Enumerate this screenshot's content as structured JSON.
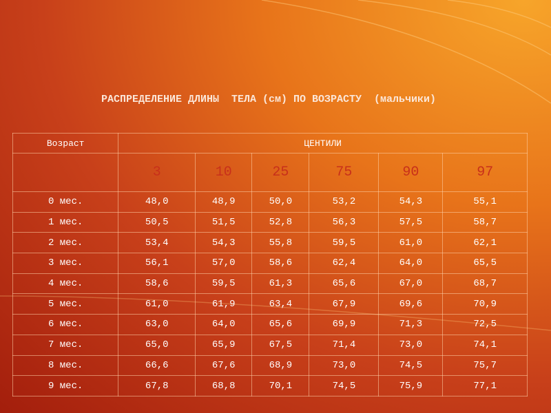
{
  "title": "РАСПРЕДЕЛЕНИЕ ДЛИНЫ  ТЕЛА (см) ПО ВОЗРАСТУ  (мальчики)",
  "table": {
    "header": [
      "Возраст",
      "ЦЕНТИЛИ"
    ],
    "centiles": [
      "3",
      "10",
      "25",
      "75",
      "90",
      "97"
    ],
    "rows": [
      [
        "0 мес.",
        "48,0",
        "48,9",
        "50,0",
        "53,2",
        "54,3",
        "55,1"
      ],
      [
        "1 мес.",
        "50,5",
        "51,5",
        "52,8",
        "56,3",
        "57,5",
        "58,7"
      ],
      [
        "2 мес.",
        "53,4",
        "54,3",
        "55,8",
        "59,5",
        "61,0",
        "62,1"
      ],
      [
        "3 мес.",
        "56,1",
        "57,0",
        "58,6",
        "62,4",
        "64,0",
        "65,5"
      ],
      [
        "4 мес.",
        "58,6",
        "59,5",
        "61,3",
        "65,6",
        "67,0",
        "68,7"
      ],
      [
        "5 мес.",
        "61,0",
        "61,9",
        "63,4",
        "67,9",
        "69,6",
        "70,9"
      ],
      [
        "6 мес.",
        "63,0",
        "64,0",
        "65,6",
        "69,9",
        "71,3",
        "72,5"
      ],
      [
        "7 мес.",
        "65,0",
        "65,9",
        "67,5",
        "71,4",
        "73,0",
        "74,1"
      ],
      [
        "8 мес.",
        "66,6",
        "67,6",
        "68,9",
        "73,0",
        "74,5",
        "75,7"
      ],
      [
        "9 мес.",
        "67,8",
        "68,8",
        "70,1",
        "74,5",
        "75,9",
        "77,1"
      ]
    ]
  }
}
